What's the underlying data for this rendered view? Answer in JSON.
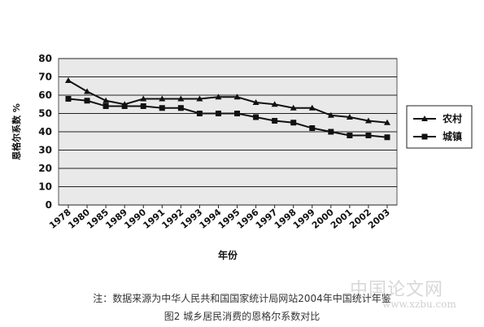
{
  "chart_data": {
    "type": "line",
    "title": "",
    "xlabel": "年份",
    "ylabel": "恩格尔系数 %",
    "categories": [
      "1978",
      "1980",
      "1985",
      "1989",
      "1990",
      "1991",
      "1992",
      "1993",
      "1994",
      "1995",
      "1996",
      "1997",
      "1998",
      "1999",
      "2000",
      "2001",
      "2002",
      "2003"
    ],
    "ylim": [
      0,
      80
    ],
    "yticks": [
      0,
      10,
      20,
      30,
      40,
      50,
      60,
      70,
      80
    ],
    "grid": true,
    "legend_position": "right",
    "series": [
      {
        "name": "农村",
        "marker": "triangle",
        "color": "#111111",
        "values": [
          68,
          62,
          57,
          55,
          58,
          58,
          58,
          58,
          59,
          59,
          56,
          55,
          53,
          53,
          49,
          48,
          46,
          45
        ]
      },
      {
        "name": "城镇",
        "marker": "square",
        "color": "#111111",
        "values": [
          58,
          57,
          54,
          54,
          54,
          53,
          53,
          50,
          50,
          50,
          48,
          46,
          45,
          42,
          40,
          38,
          38,
          37
        ]
      }
    ]
  },
  "footer": {
    "note": "注：数据来源为中华人民共和国国家统计局网站2004年中国统计年鉴",
    "figure_title": "图2 城乡居民消费的恩格尔系数对比"
  },
  "watermark": {
    "text": "中国论文网",
    "url": "www.xzbu.com"
  }
}
